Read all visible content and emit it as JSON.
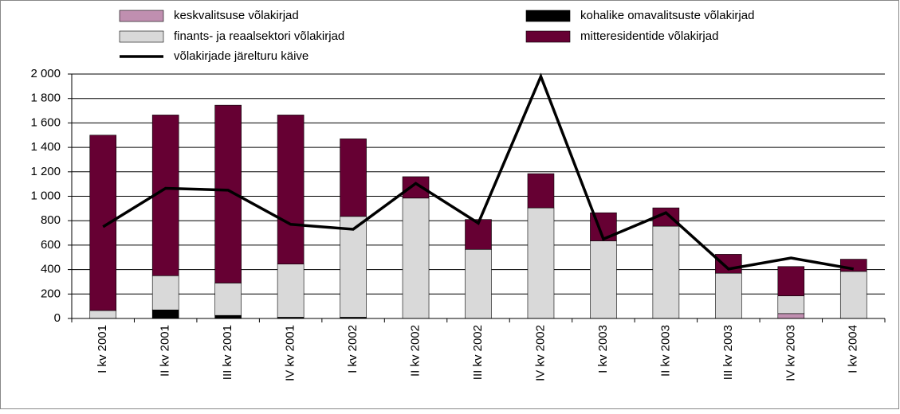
{
  "chart_data": {
    "type": "bar",
    "stacked": true,
    "categories": [
      "I kv 2001",
      "II kv 2001",
      "III kv 2001",
      "IV kv 2001",
      "I kv 2002",
      "II kv 2002",
      "III kv 2002",
      "IV kv 2002",
      "I kv 2003",
      "II kv 2003",
      "III kv 2003",
      "IV kv 2003",
      "I kv 2004"
    ],
    "series": [
      {
        "name": "keskvalitsuse võlakirjad",
        "color": "#c08fb0",
        "values": [
          0,
          0,
          0,
          0,
          0,
          0,
          0,
          0,
          0,
          0,
          0,
          40,
          0
        ]
      },
      {
        "name": "kohalike omavalitsuste võlakirjad",
        "color": "#000000",
        "values": [
          0,
          70,
          25,
          10,
          10,
          0,
          0,
          0,
          0,
          0,
          0,
          0,
          0
        ]
      },
      {
        "name": "finants- ja reaalsektori võlakirjad",
        "color": "#d9d9d9",
        "values": [
          65,
          280,
          265,
          435,
          825,
          985,
          565,
          905,
          635,
          755,
          370,
          145,
          385
        ]
      },
      {
        "name": "mitteresidentide võlakirjad",
        "color": "#660033",
        "values": [
          1435,
          1315,
          1455,
          1220,
          635,
          175,
          245,
          280,
          230,
          150,
          155,
          240,
          100
        ]
      },
      {
        "name": "võlakirjade järelturu käive",
        "color": "#000000",
        "type": "line",
        "values": [
          750,
          1065,
          1050,
          770,
          730,
          1105,
          780,
          1980,
          650,
          865,
          405,
          495,
          405
        ]
      }
    ],
    "ylim": [
      0,
      2000
    ],
    "yticks": [
      0,
      200,
      400,
      600,
      800,
      {
        "value": 1000,
        "label": "1 000"
      },
      {
        "value": 1200,
        "label": "1 200"
      },
      {
        "value": 1400,
        "label": "1 400"
      },
      {
        "value": 1600,
        "label": "1 600"
      },
      {
        "value": 1800,
        "label": "1 800"
      },
      {
        "value": 2000,
        "label": "2 000"
      }
    ],
    "grid": true
  }
}
